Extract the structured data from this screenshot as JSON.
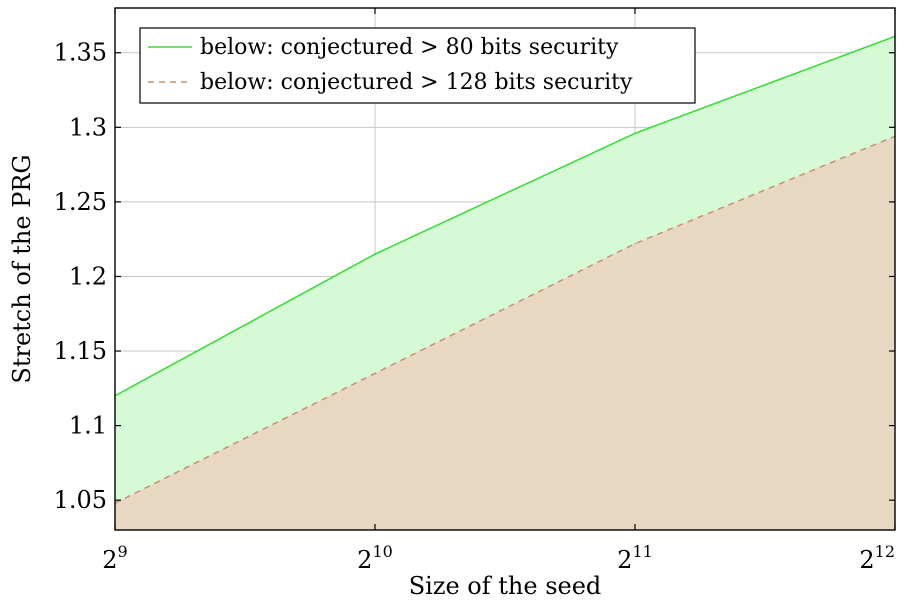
{
  "chart_data": {
    "type": "area",
    "xlabel": "Size of the seed",
    "ylabel": "Stretch of the PRG",
    "x_scale": "log2",
    "x": [
      512,
      1024,
      2048,
      4096
    ],
    "x_tick_labels": [
      {
        "base": "2",
        "exp": "9"
      },
      {
        "base": "2",
        "exp": "10"
      },
      {
        "base": "2",
        "exp": "11"
      },
      {
        "base": "2",
        "exp": "12"
      }
    ],
    "y_ticks": [
      "1.05",
      "1.1",
      "1.15",
      "1.2",
      "1.25",
      "1.3",
      "1.35"
    ],
    "ylim": [
      1.03,
      1.38
    ],
    "grid": true,
    "legend_position": "top-left",
    "series": [
      {
        "name": "below: conjectured > 80 bits security",
        "values": [
          1.12,
          1.215,
          1.296,
          1.361
        ],
        "line_color": "#33dd33",
        "fill_color": "#d6fad6",
        "line_style": "solid"
      },
      {
        "name": "below: conjectured > 128 bits security",
        "values": [
          1.048,
          1.135,
          1.222,
          1.294
        ],
        "line_color": "#c89070",
        "fill_color": "#e8d8c2",
        "line_style": "dashed"
      }
    ]
  }
}
